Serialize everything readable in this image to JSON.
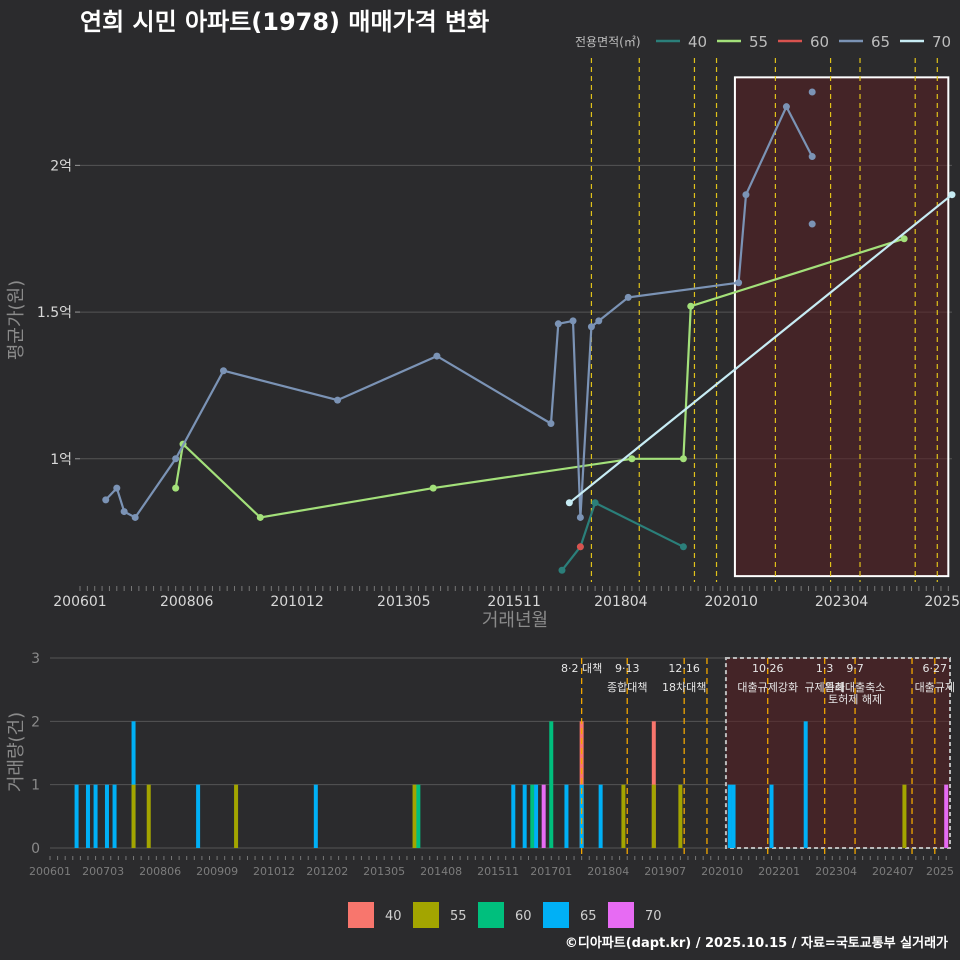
{
  "chart_data": [
    {
      "type": "line",
      "title": "연희 시민 아파트(1978) 매매가격 변화",
      "xlabel": "거래년월",
      "ylabel": "평균가(원)",
      "x_range": [
        "2006-01",
        "2025-10"
      ],
      "ylim": [
        58000000,
        240000000
      ],
      "y_ticks": [
        {
          "value": 100000000,
          "label": "1억"
        },
        {
          "value": 150000000,
          "label": "1.5억"
        },
        {
          "value": 200000000,
          "label": "2억"
        }
      ],
      "x_ticks": [
        {
          "date": "2006-01",
          "label": "200601"
        },
        {
          "date": "2008-06",
          "label": "200806"
        },
        {
          "date": "2010-12",
          "label": "201012"
        },
        {
          "date": "2013-05",
          "label": "201305"
        },
        {
          "date": "2015-11",
          "label": "201511"
        },
        {
          "date": "2018-04",
          "label": "201804"
        },
        {
          "date": "2020-10",
          "label": "202010"
        },
        {
          "date": "2023-04",
          "label": "202304"
        },
        {
          "date": "2025-10",
          "label": "2025"
        }
      ],
      "legend_title": "전용면적(㎡)",
      "series": [
        {
          "name": "40",
          "color": "#2b7f7a",
          "points": [
            [
              "2016-12",
              62000000
            ],
            [
              "2017-05",
              70000000
            ],
            [
              "2017-09",
              85000000
            ],
            [
              "2019-09",
              70000000
            ]
          ]
        },
        {
          "name": "55",
          "color": "#a3e07a",
          "points": [
            [
              "2008-03",
              90000000
            ],
            [
              "2008-05",
              105000000
            ],
            [
              "2010-02",
              80000000
            ],
            [
              "2014-01",
              90000000
            ],
            [
              "2018-07",
              100000000
            ],
            [
              "2019-09",
              100000000
            ],
            [
              "2019-11",
              152000000
            ],
            [
              "2024-09",
              175000000
            ]
          ]
        },
        {
          "name": "60",
          "color": "#d9534f",
          "points": [
            [
              "2017-05",
              70000000
            ]
          ]
        },
        {
          "name": "65",
          "color": "#7b93b5",
          "points": [
            [
              "2006-08",
              86000000
            ],
            [
              "2006-11",
              90000000
            ],
            [
              "2007-01",
              82000000
            ],
            [
              "2007-04",
              80000000
            ],
            [
              "2008-03",
              100000000
            ],
            [
              "2009-04",
              130000000
            ],
            [
              "2011-11",
              120000000
            ],
            [
              "2014-02",
              135000000
            ],
            [
              "2016-09",
              112000000
            ],
            [
              "2016-11",
              146000000
            ],
            [
              "2017-03",
              147000000
            ],
            [
              "2017-05",
              80000000
            ],
            [
              "2017-08",
              145000000
            ],
            [
              "2017-10",
              147000000
            ],
            [
              "2018-06",
              155000000
            ],
            [
              "2020-12",
              160000000
            ],
            [
              "2021-02",
              190000000
            ],
            [
              "2022-01",
              220000000
            ],
            [
              "2022-08",
              203000000
            ]
          ]
        },
        {
          "name": "70",
          "color": "#c7ecf4",
          "points": [
            [
              "2017-02",
              85000000
            ],
            [
              "2025-10",
              190000000
            ]
          ]
        }
      ],
      "extra_points": [
        {
          "series": "65",
          "date": "2022-08",
          "value": 225000000
        },
        {
          "series": "65",
          "date": "2022-08",
          "value": 180000000
        }
      ],
      "policy_lines": [
        "2017-08",
        "2018-09",
        "2019-12",
        "2020-06",
        "2021-10",
        "2023-01",
        "2023-09",
        "2024-12",
        "2025-06"
      ],
      "highlight_box": {
        "from": "2020-11",
        "to": "2025-09",
        "ymin": 60000000,
        "ymax": 230000000
      }
    },
    {
      "type": "bar",
      "xlabel": "",
      "ylabel": "거래량(건)",
      "ylim": [
        0,
        3
      ],
      "y_ticks": [
        0,
        1,
        2,
        3
      ],
      "x_ticks": [
        {
          "date": "2006-01",
          "label": "200601"
        },
        {
          "date": "2007-03",
          "label": "200703"
        },
        {
          "date": "2008-06",
          "label": "200806"
        },
        {
          "date": "2009-09",
          "label": "200909"
        },
        {
          "date": "2010-12",
          "label": "201012"
        },
        {
          "date": "2012-02",
          "label": "201202"
        },
        {
          "date": "2013-05",
          "label": "201305"
        },
        {
          "date": "2014-08",
          "label": "201408"
        },
        {
          "date": "2015-11",
          "label": "201511"
        },
        {
          "date": "2017-01",
          "label": "201701"
        },
        {
          "date": "2018-04",
          "label": "201804"
        },
        {
          "date": "2019-07",
          "label": "201907"
        },
        {
          "date": "2020-10",
          "label": "202010"
        },
        {
          "date": "2022-01",
          "label": "202201"
        },
        {
          "date": "2023-04",
          "label": "202304"
        },
        {
          "date": "2024-07",
          "label": "202407"
        },
        {
          "date": "2025-10",
          "label": "2025"
        }
      ],
      "legend": [
        {
          "name": "40",
          "color": "#f8766d"
        },
        {
          "name": "55",
          "color": "#a3a500"
        },
        {
          "name": "60",
          "color": "#00bf7d"
        },
        {
          "name": "65",
          "color": "#00b0f6"
        },
        {
          "name": "70",
          "color": "#e76bf3"
        }
      ],
      "bars": [
        {
          "date": "2006-08",
          "series": "65",
          "count": 1
        },
        {
          "date": "2006-11",
          "series": "65",
          "count": 1
        },
        {
          "date": "2007-01",
          "series": "65",
          "count": 1
        },
        {
          "date": "2007-04",
          "series": "65",
          "count": 1
        },
        {
          "date": "2007-06",
          "series": "65",
          "count": 1
        },
        {
          "date": "2007-11",
          "series": "65",
          "count": 2
        },
        {
          "date": "2007-11",
          "series": "55",
          "count": 1
        },
        {
          "date": "2008-03",
          "series": "55",
          "count": 1
        },
        {
          "date": "2009-04",
          "series": "65",
          "count": 1
        },
        {
          "date": "2010-02",
          "series": "55",
          "count": 1
        },
        {
          "date": "2011-11",
          "series": "65",
          "count": 1
        },
        {
          "date": "2014-01",
          "series": "55",
          "count": 1
        },
        {
          "date": "2014-02",
          "series": "60",
          "count": 1
        },
        {
          "date": "2016-03",
          "series": "65",
          "count": 1
        },
        {
          "date": "2016-06",
          "series": "65",
          "count": 1
        },
        {
          "date": "2016-08",
          "series": "60",
          "count": 1
        },
        {
          "date": "2016-09",
          "series": "65",
          "count": 1
        },
        {
          "date": "2016-11",
          "series": "70",
          "count": 1
        },
        {
          "date": "2017-01",
          "series": "60",
          "count": 2
        },
        {
          "date": "2017-05",
          "series": "65",
          "count": 1
        },
        {
          "date": "2017-09",
          "series": "40",
          "count": 2
        },
        {
          "date": "2017-09",
          "series": "65",
          "count": 1
        },
        {
          "date": "2018-02",
          "series": "65",
          "count": 1
        },
        {
          "date": "2018-08",
          "series": "55",
          "count": 1
        },
        {
          "date": "2019-04",
          "series": "40",
          "count": 2
        },
        {
          "date": "2019-04",
          "series": "55",
          "count": 1
        },
        {
          "date": "2019-11",
          "series": "55",
          "count": 1
        },
        {
          "date": "2020-12",
          "series": "65",
          "count": 1
        },
        {
          "date": "2021-01",
          "series": "65",
          "count": 1
        },
        {
          "date": "2021-11",
          "series": "65",
          "count": 1
        },
        {
          "date": "2022-08",
          "series": "65",
          "count": 2
        },
        {
          "date": "2024-10",
          "series": "55",
          "count": 1
        },
        {
          "date": "2025-09",
          "series": "70",
          "count": 1
        }
      ],
      "annotations": [
        {
          "date": "2017-09",
          "text1": "8·2 대책",
          "text2": ""
        },
        {
          "date": "2018-09",
          "text1": "9·13",
          "text2": "종합대책"
        },
        {
          "date": "2019-12",
          "text1": "12·16",
          "text2": "18차대책"
        },
        {
          "date": "2021-10",
          "text1": "10·26",
          "text2": "대출규제강화"
        },
        {
          "date": "2023-01",
          "text1": "1·3",
          "text2": "규제완화"
        },
        {
          "date": "2023-09",
          "text1": "9·7",
          "text2": "특례대출축소"
        },
        {
          "date": "2023-09",
          "text1": "",
          "text2": "토허제 해제"
        },
        {
          "date": "2025-06",
          "text1": "6·27",
          "text2": "대출규제"
        }
      ],
      "policy_lines": [
        "2017-09",
        "2018-09",
        "2019-12",
        "2020-06",
        "2021-10",
        "2023-01",
        "2023-09",
        "2024-12",
        "2025-06"
      ],
      "highlight_box": {
        "from": "2020-11",
        "to": "2025-10"
      }
    }
  ],
  "footer": "©디아파트(dapt.kr) / 2025.10.15 / 자료=국토교통부 실거래가"
}
